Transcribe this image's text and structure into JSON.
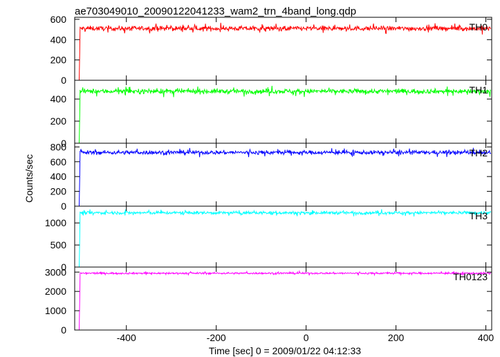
{
  "chart_data": {
    "type": "line",
    "title": "ae703049010_20090122041233_wam2_trn_4band_long.qdp",
    "xlabel": "Time [sec] 0 = 2009/01/22 04:12:33",
    "ylabel": "Counts/sec",
    "xlim": [
      -515,
      413
    ],
    "x_ticks": [
      "-400",
      "-200",
      "0",
      "200",
      "400"
    ],
    "x_tick_values": [
      -400,
      -200,
      0,
      200,
      400
    ],
    "grid": false,
    "signal_start_x": -505,
    "panels": [
      {
        "name": "TH0",
        "color": "#ff0000",
        "ylim": [
          0,
          620
        ],
        "y_tick_values": [
          0,
          200,
          400,
          600
        ],
        "y_ticks": [
          "0",
          "200",
          "400",
          "600"
        ],
        "level": 510,
        "noise": 28
      },
      {
        "name": "TH1",
        "color": "#00ff00",
        "ylim": [
          0,
          570
        ],
        "y_tick_values": [
          0,
          200,
          400
        ],
        "y_ticks": [
          "0",
          "200",
          "400"
        ],
        "level": 470,
        "noise": 26
      },
      {
        "name": "TH2",
        "color": "#0000ff",
        "ylim": [
          0,
          850
        ],
        "y_tick_values": [
          0,
          200,
          400,
          600,
          800
        ],
        "y_ticks": [
          "0",
          "200",
          "400",
          "600",
          "800"
        ],
        "level": 725,
        "noise": 32
      },
      {
        "name": "TH3",
        "color": "#00ffff",
        "ylim": [
          0,
          1380
        ],
        "y_tick_values": [
          0,
          500,
          1000
        ],
        "y_ticks": [
          "0",
          "500",
          "1000"
        ],
        "level": 1230,
        "noise": 42
      },
      {
        "name": "TH0123",
        "color": "#ff00ff",
        "ylim": [
          0,
          3260
        ],
        "y_tick_values": [
          0,
          1000,
          2000,
          3000
        ],
        "y_ticks": [
          "0",
          "1000",
          "2000",
          "3000"
        ],
        "level": 2940,
        "noise": 55
      }
    ]
  }
}
